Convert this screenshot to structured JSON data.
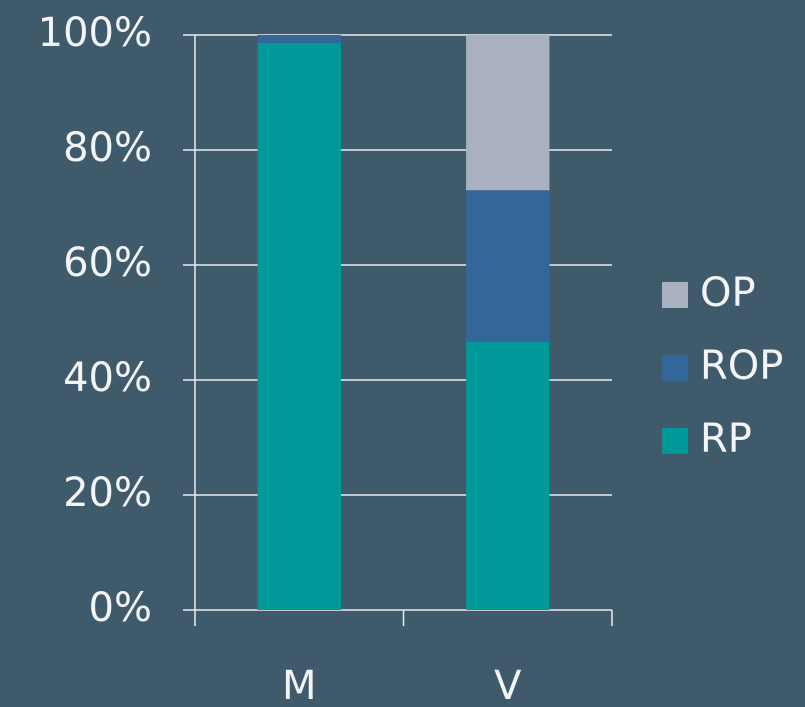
{
  "chart_data": {
    "type": "stacked_bar",
    "categories": [
      "M",
      "V"
    ],
    "series": [
      {
        "name": "RP",
        "color": "#009999",
        "values": [
          98.6,
          46.6
        ]
      },
      {
        "name": "ROP",
        "color": "#336699",
        "values": [
          1.4,
          26.4
        ]
      },
      {
        "name": "OP",
        "color": "#a9b0bf",
        "values": [
          0,
          27.0
        ]
      }
    ],
    "ylim": [
      0,
      100
    ],
    "yticks": [
      {
        "value": 0,
        "label": "0%"
      },
      {
        "value": 20,
        "label": "20%"
      },
      {
        "value": 40,
        "label": "40%"
      },
      {
        "value": 60,
        "label": "60%"
      },
      {
        "value": 80,
        "label": "80%"
      },
      {
        "value": 100,
        "label": "100%"
      }
    ],
    "grid": true,
    "legend": "right"
  }
}
